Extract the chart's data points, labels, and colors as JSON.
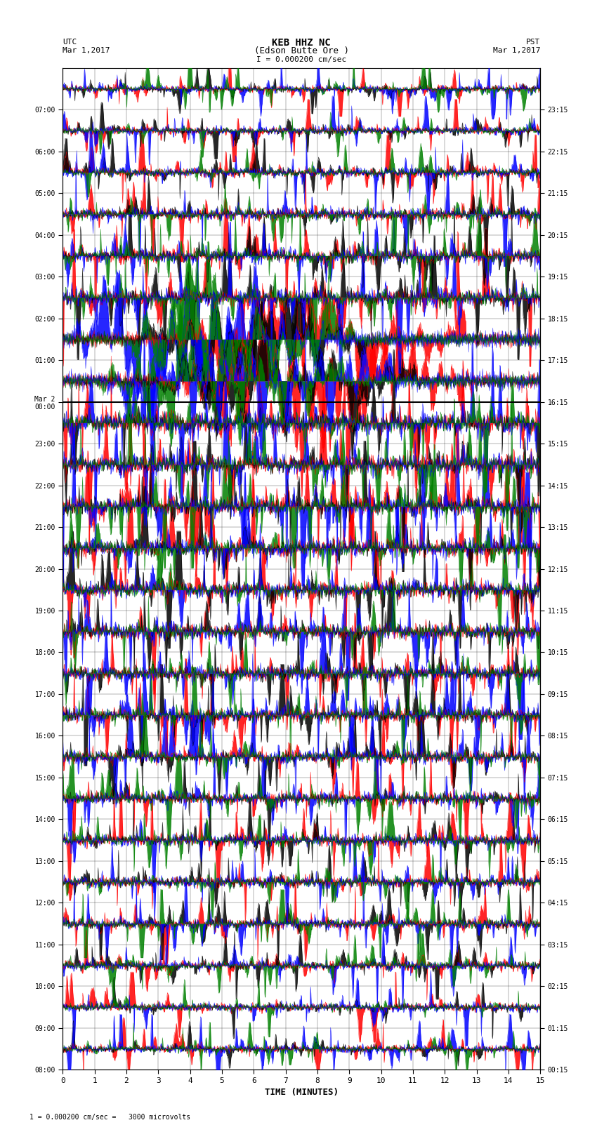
{
  "title_line1": "KEB HHZ NC",
  "title_line2": "(Edson Butte Ore )",
  "title_line3": "I = 0.000200 cm/sec",
  "label_utc": "UTC",
  "label_date_left": "Mar 1,2017",
  "label_pst": "PST",
  "label_date_right": "Mar 1,2017",
  "xlabel": "TIME (MINUTES)",
  "footer": "1 = 0.000200 cm/sec =   3000 microvolts",
  "yticks_left": [
    "08:00",
    "09:00",
    "10:00",
    "11:00",
    "12:00",
    "13:00",
    "14:00",
    "15:00",
    "16:00",
    "17:00",
    "18:00",
    "19:00",
    "20:00",
    "21:00",
    "22:00",
    "23:00",
    "Mar 2\n00:00",
    "01:00",
    "02:00",
    "03:00",
    "04:00",
    "05:00",
    "06:00",
    "07:00"
  ],
  "yticks_right": [
    "00:15",
    "01:15",
    "02:15",
    "03:15",
    "04:15",
    "05:15",
    "06:15",
    "07:15",
    "08:15",
    "09:15",
    "10:15",
    "11:15",
    "12:15",
    "13:15",
    "14:15",
    "15:15",
    "16:15",
    "17:15",
    "18:15",
    "19:15",
    "20:15",
    "21:15",
    "22:15",
    "23:15"
  ],
  "n_rows": 24,
  "n_minutes": 15,
  "bg_color": "#ffffff",
  "colors": [
    "#000000",
    "#ff0000",
    "#0000ff",
    "#008000"
  ],
  "amp_by_row": [
    0.25,
    0.28,
    0.3,
    0.32,
    0.35,
    0.38,
    0.4,
    0.42,
    0.45,
    0.48,
    0.5,
    0.52,
    0.55,
    0.58,
    0.62,
    0.65,
    0.95,
    0.9,
    0.55,
    0.45,
    0.38,
    0.3,
    0.25,
    0.22
  ]
}
